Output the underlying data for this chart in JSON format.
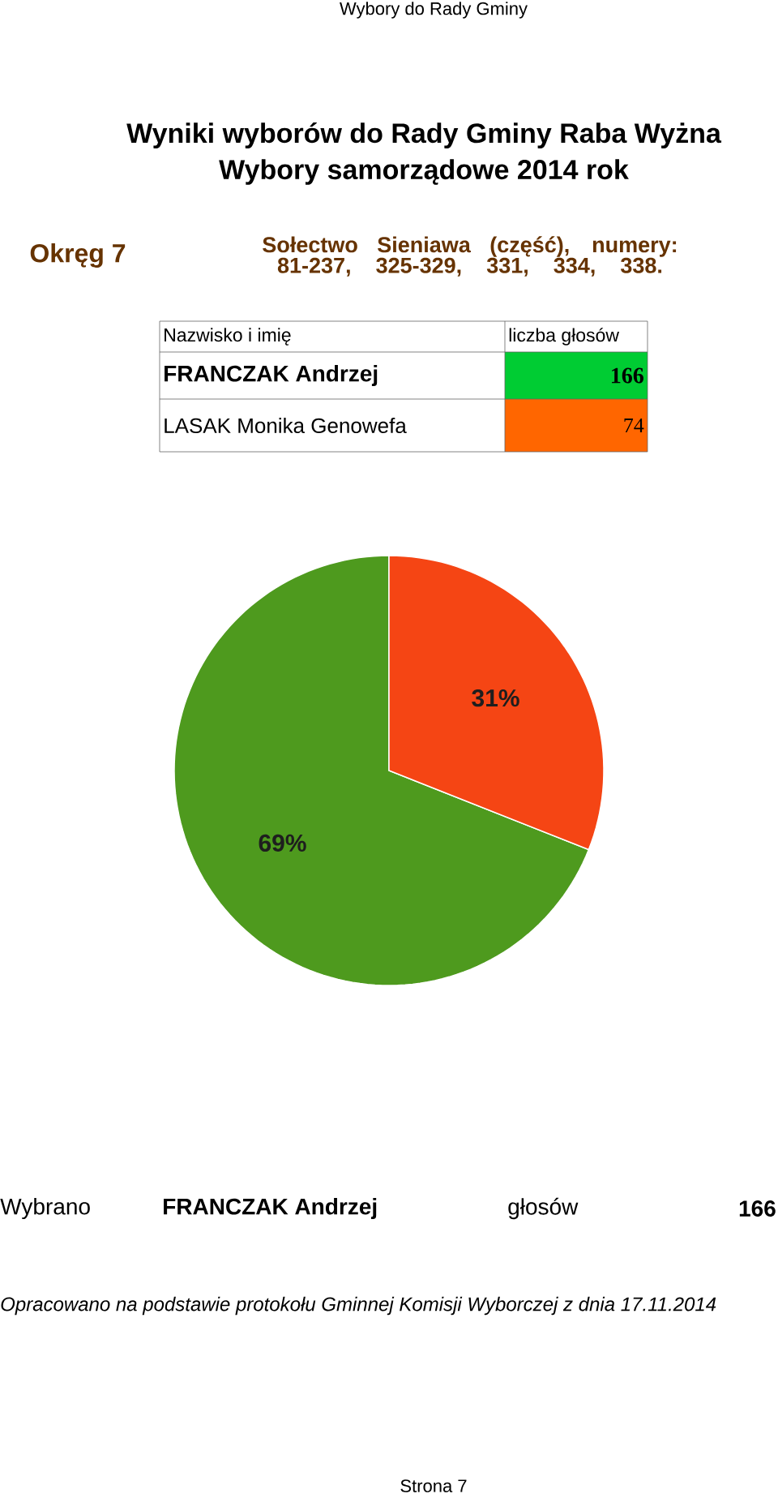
{
  "chart_data": {
    "type": "pie",
    "title": "Wyniki wyborów do Rady Gminy Raba Wyżna",
    "subtitle": "Wybory samorządowe 2014 rok",
    "categories": [
      "FRANCZAK Andrzej",
      "LASAK Monika Genowefa"
    ],
    "values": [
      69,
      31
    ],
    "value_labels": [
      "69%",
      "31%"
    ],
    "colors": [
      "#4e9a1e",
      "#f54514"
    ],
    "annotations": [
      "Wybory do Rady Gminy",
      "Okręg 7",
      "Sołectwo Sieniawa (część), numery: 81-237, 325-329, 331, 334, 338.",
      "Nazwisko i imię",
      "liczba głosów",
      "166",
      "74",
      "Wybrano",
      "głosów",
      "Opracowano na podstawie protokołu Gminnej Komisji Wyborczej z dnia 17.11.2014",
      "Strona 7"
    ]
  }
}
